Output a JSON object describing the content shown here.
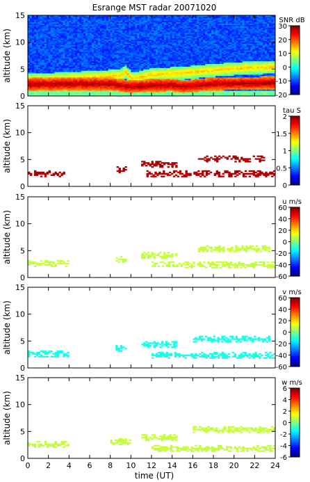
{
  "title": "Esrange MST radar 20071020",
  "xlabel": "time (UT)",
  "x_ticks": [
    0,
    2,
    4,
    6,
    8,
    10,
    12,
    14,
    16,
    18,
    20,
    22,
    24
  ],
  "chart_data": [
    {
      "type": "heatmap",
      "title": "Esrange MST radar 20071020",
      "xlabel": "time (UT)",
      "ylabel": "altitude (km)",
      "xlim": [
        0,
        24
      ],
      "ylim": [
        0,
        15
      ],
      "y_ticks": [
        0,
        5,
        10,
        15
      ],
      "colorbar": {
        "label": "SNR dB",
        "range": [
          -20,
          30
        ],
        "ticks": [
          30,
          20,
          10,
          0,
          -10,
          -20
        ]
      },
      "layers": [
        {
          "t": [
            0,
            3,
            6,
            9,
            9.5,
            10.2,
            12,
            15,
            18,
            21,
            24
          ],
          "alt": [
            3.0,
            3.2,
            3.5,
            3.8,
            4.5,
            3.2,
            4.0,
            4.3,
            4.8,
            5.2,
            5.4
          ],
          "value": 12
        },
        {
          "t": [
            0,
            4,
            8,
            9,
            10,
            12,
            14,
            15,
            18,
            22,
            24
          ],
          "alt": [
            2.2,
            2.3,
            2.3,
            2.0,
            1.8,
            2.0,
            2.1,
            1.8,
            2.3,
            2.4,
            2.5
          ],
          "value": 26
        }
      ]
    },
    {
      "type": "heatmap",
      "ylabel": "altitude (km)",
      "xlim": [
        0,
        24
      ],
      "ylim": [
        0,
        15
      ],
      "y_ticks": [
        0,
        5,
        10,
        15
      ],
      "colorbar": {
        "label": "tau S",
        "range": [
          0,
          2
        ],
        "ticks": [
          2,
          1.5,
          1,
          0.5,
          0
        ]
      },
      "echoes": [
        {
          "t0": 0,
          "t1": 3.6,
          "alt": 2.3,
          "value": 1.9
        },
        {
          "t0": 8.6,
          "t1": 9.6,
          "alt": 3.0,
          "value": 1.9
        },
        {
          "t0": 11.0,
          "t1": 14.5,
          "alt": 4.0,
          "value": 1.9
        },
        {
          "t0": 11.5,
          "t1": 24,
          "alt": 2.2,
          "value": 1.9
        },
        {
          "t0": 16.5,
          "t1": 23.0,
          "alt": 5.0,
          "value": 1.9
        }
      ]
    },
    {
      "type": "heatmap",
      "ylabel": "altitude (km)",
      "xlim": [
        0,
        24
      ],
      "ylim": [
        0,
        15
      ],
      "y_ticks": [
        0,
        5,
        10,
        15
      ],
      "colorbar": {
        "label": "u m/s",
        "range": [
          -60,
          60
        ],
        "ticks": [
          60,
          40,
          20,
          0,
          -20,
          -40,
          -60
        ]
      },
      "echoes": [
        {
          "t0": 0,
          "t1": 4.0,
          "alt": 2.5,
          "value": 8
        },
        {
          "t0": 8.5,
          "t1": 9.6,
          "alt": 3.2,
          "value": 8
        },
        {
          "t0": 11.0,
          "t1": 14.5,
          "alt": 4.0,
          "value": 8
        },
        {
          "t0": 12.0,
          "t1": 24,
          "alt": 2.3,
          "value": 8
        },
        {
          "t0": 16.5,
          "t1": 23.5,
          "alt": 5.3,
          "value": 8
        }
      ]
    },
    {
      "type": "heatmap",
      "ylabel": "altitude (km)",
      "xlim": [
        0,
        24
      ],
      "ylim": [
        0,
        15
      ],
      "y_ticks": [
        0,
        5,
        10,
        15
      ],
      "colorbar": {
        "label": "v m/s",
        "range": [
          -60,
          60
        ],
        "ticks": [
          60,
          40,
          20,
          0,
          -20,
          -40,
          -60
        ]
      },
      "echoes": [
        {
          "t0": 0,
          "t1": 4.0,
          "alt": 2.5,
          "value": -12
        },
        {
          "t0": 8.5,
          "t1": 9.6,
          "alt": 3.5,
          "value": -12
        },
        {
          "t0": 11.0,
          "t1": 14.5,
          "alt": 4.3,
          "value": -12
        },
        {
          "t0": 12.0,
          "t1": 24,
          "alt": 2.2,
          "value": -12
        },
        {
          "t0": 16.0,
          "t1": 23.5,
          "alt": 5.2,
          "value": -12
        }
      ]
    },
    {
      "type": "heatmap",
      "ylabel": "altitude (km)",
      "xlim": [
        0,
        24
      ],
      "ylim": [
        0,
        15
      ],
      "y_ticks": [
        0,
        5,
        10,
        15
      ],
      "colorbar": {
        "label": "w m/s",
        "range": [
          -6,
          6
        ],
        "ticks": [
          6,
          4,
          2,
          0,
          -2,
          -4,
          -6
        ]
      },
      "echoes": [
        {
          "t0": 0,
          "t1": 4.0,
          "alt": 2.5,
          "value": 0.8
        },
        {
          "t0": 8.0,
          "t1": 10.0,
          "alt": 3.0,
          "value": 0.8
        },
        {
          "t0": 11.0,
          "t1": 14.5,
          "alt": 3.8,
          "value": 0.8
        },
        {
          "t0": 12.0,
          "t1": 24,
          "alt": 1.8,
          "value": 0.8
        },
        {
          "t0": 16.0,
          "t1": 24,
          "alt": 5.2,
          "value": 0.8
        }
      ]
    }
  ]
}
